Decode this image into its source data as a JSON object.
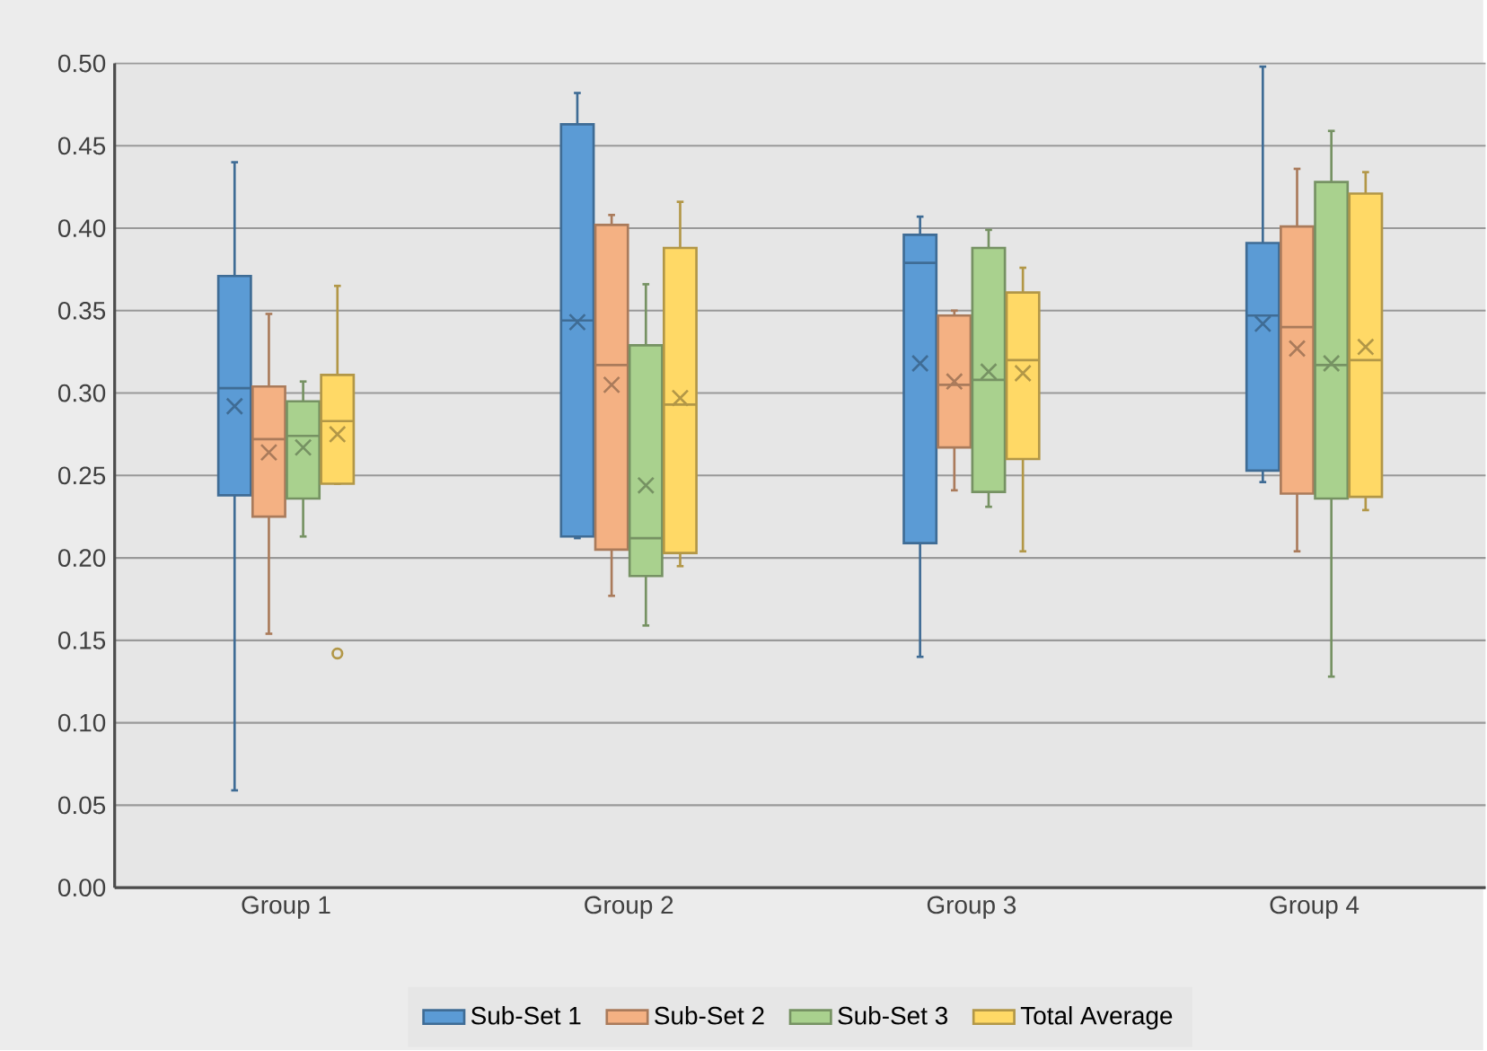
{
  "chart_data": {
    "type": "box",
    "categories": [
      "Group 1",
      "Group 2",
      "Group 3",
      "Group 4"
    ],
    "series": [
      {
        "name": "Sub-Set 1",
        "color": "#5b9bd5",
        "boxes": [
          {
            "low": 0.059,
            "q1": 0.238,
            "median": 0.303,
            "q3": 0.371,
            "high": 0.44,
            "mean": 0.292
          },
          {
            "low": 0.212,
            "q1": 0.213,
            "median": 0.344,
            "q3": 0.463,
            "high": 0.482,
            "mean": 0.343
          },
          {
            "low": 0.14,
            "q1": 0.209,
            "median": 0.379,
            "q3": 0.396,
            "high": 0.407,
            "mean": 0.318
          },
          {
            "low": 0.246,
            "q1": 0.253,
            "median": 0.347,
            "q3": 0.391,
            "high": 0.498,
            "mean": 0.342
          }
        ]
      },
      {
        "name": "Sub-Set 2",
        "color": "#f4b183",
        "boxes": [
          {
            "low": 0.154,
            "q1": 0.225,
            "median": 0.272,
            "q3": 0.304,
            "high": 0.348,
            "mean": 0.264
          },
          {
            "low": 0.177,
            "q1": 0.205,
            "median": 0.317,
            "q3": 0.402,
            "high": 0.408,
            "mean": 0.305
          },
          {
            "low": 0.241,
            "q1": 0.267,
            "median": 0.305,
            "q3": 0.347,
            "high": 0.35,
            "mean": 0.307
          },
          {
            "low": 0.204,
            "q1": 0.239,
            "median": 0.34,
            "q3": 0.401,
            "high": 0.436,
            "mean": 0.327
          }
        ]
      },
      {
        "name": "Sub-Set 3",
        "color": "#a9d18e",
        "boxes": [
          {
            "low": 0.213,
            "q1": 0.236,
            "median": 0.274,
            "q3": 0.295,
            "high": 0.307,
            "mean": 0.267
          },
          {
            "low": 0.159,
            "q1": 0.189,
            "median": 0.212,
            "q3": 0.329,
            "high": 0.366,
            "mean": 0.244
          },
          {
            "low": 0.231,
            "q1": 0.24,
            "median": 0.308,
            "q3": 0.388,
            "high": 0.399,
            "mean": 0.313
          },
          {
            "low": 0.128,
            "q1": 0.236,
            "median": 0.317,
            "q3": 0.428,
            "high": 0.459,
            "mean": 0.318
          }
        ]
      },
      {
        "name": "Total Average",
        "color": "#ffd966",
        "boxes": [
          {
            "low": 0.245,
            "q1": 0.245,
            "median": 0.283,
            "q3": 0.311,
            "high": 0.365,
            "mean": 0.275,
            "outliers": [
              0.142
            ]
          },
          {
            "low": 0.195,
            "q1": 0.203,
            "median": 0.293,
            "q3": 0.388,
            "high": 0.416,
            "mean": 0.297
          },
          {
            "low": 0.204,
            "q1": 0.26,
            "median": 0.32,
            "q3": 0.361,
            "high": 0.376,
            "mean": 0.312
          },
          {
            "low": 0.229,
            "q1": 0.237,
            "median": 0.32,
            "q3": 0.421,
            "high": 0.434,
            "mean": 0.328
          }
        ]
      }
    ],
    "ylim": [
      0,
      0.5
    ],
    "yticks": [
      {
        "value": 0,
        "label": "0.00"
      },
      {
        "value": 0.05,
        "label": "0.05"
      },
      {
        "value": 0.1,
        "label": "0.10"
      },
      {
        "value": 0.15,
        "label": "0.15"
      },
      {
        "value": 0.2,
        "label": "0.20"
      },
      {
        "value": 0.25,
        "label": "0.25"
      },
      {
        "value": 0.3,
        "label": "0.30"
      },
      {
        "value": 0.35,
        "label": "0.35"
      },
      {
        "value": 0.4,
        "label": "0.40"
      },
      {
        "value": 0.45,
        "label": "0.45"
      },
      {
        "value": 0.5,
        "label": "0.50"
      }
    ],
    "grid": "y",
    "legend": "bottom"
  }
}
